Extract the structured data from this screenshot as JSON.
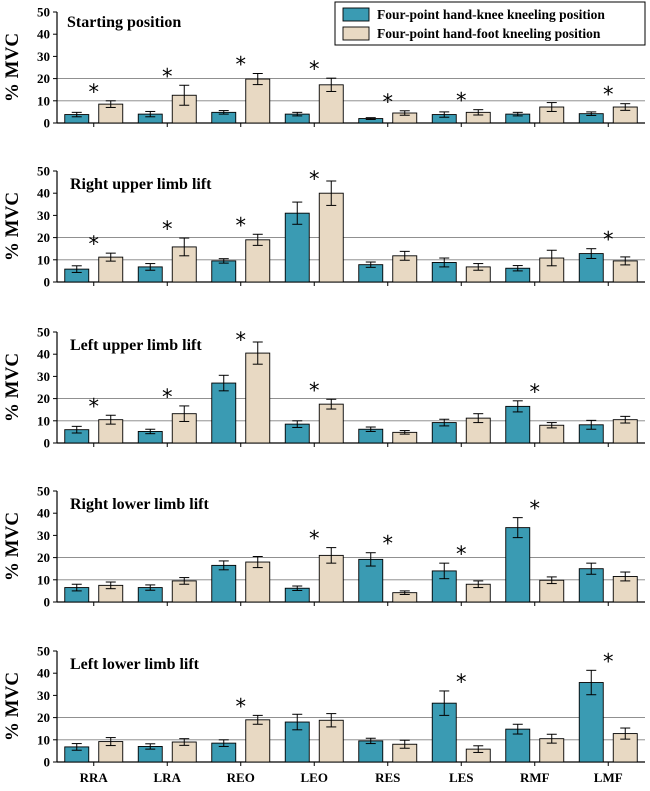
{
  "chart_data": {
    "type": "bar",
    "ylabel": "% MVC",
    "ylim": [
      0,
      50
    ],
    "yticks": [
      0,
      10,
      20,
      30,
      40,
      50
    ],
    "gridlines": [
      10,
      20
    ],
    "categories": [
      "RRA",
      "LRA",
      "REO",
      "LEO",
      "RES",
      "LES",
      "RMF",
      "LMF"
    ],
    "series_names": [
      "Four-point hand-knee kneeling position",
      "Four-point hand-foot kneeling position"
    ],
    "colors": {
      "knee": "#3a9bb3",
      "foot": "#e8d9c3"
    },
    "significance_marker": "*",
    "panels": [
      {
        "title": "Starting position",
        "knee": [
          3.8,
          4.0,
          4.8,
          4.0,
          2.0,
          3.8,
          4.0,
          4.2
        ],
        "knee_err": [
          1.0,
          1.2,
          0.8,
          0.8,
          0.4,
          1.2,
          0.8,
          0.8
        ],
        "foot": [
          8.5,
          12.5,
          19.8,
          17.2,
          4.5,
          4.8,
          7.2,
          7.2
        ],
        "foot_err": [
          1.5,
          4.5,
          2.5,
          3.0,
          1.0,
          1.2,
          2.0,
          1.5
        ],
        "sig": [
          true,
          true,
          true,
          true,
          true,
          true,
          false,
          true
        ]
      },
      {
        "title": "Right upper limb lift",
        "knee": [
          5.8,
          6.8,
          9.5,
          31.0,
          7.8,
          8.8,
          6.2,
          12.8
        ],
        "knee_err": [
          1.5,
          1.5,
          1.0,
          5.0,
          1.2,
          2.0,
          1.2,
          2.2
        ],
        "foot": [
          11.2,
          15.8,
          19.0,
          40.0,
          11.8,
          6.8,
          10.8,
          9.5
        ],
        "foot_err": [
          1.8,
          4.0,
          2.5,
          5.5,
          2.0,
          1.5,
          3.5,
          1.8
        ],
        "sig": [
          true,
          true,
          true,
          true,
          false,
          false,
          false,
          true
        ]
      },
      {
        "title": "Left upper limb lift",
        "knee": [
          6.0,
          5.2,
          27.0,
          8.5,
          6.2,
          9.2,
          16.5,
          8.2
        ],
        "knee_err": [
          1.5,
          1.0,
          3.5,
          1.5,
          1.0,
          1.5,
          2.5,
          2.0
        ],
        "foot": [
          10.5,
          13.2,
          40.5,
          17.5,
          4.8,
          11.2,
          8.0,
          10.5
        ],
        "foot_err": [
          2.0,
          3.5,
          5.0,
          2.2,
          0.8,
          2.0,
          1.2,
          1.5
        ],
        "sig": [
          true,
          true,
          true,
          true,
          false,
          false,
          true,
          false
        ]
      },
      {
        "title": "Right lower limb lift",
        "knee": [
          6.5,
          6.5,
          16.5,
          6.2,
          19.2,
          14.0,
          33.5,
          15.0
        ],
        "knee_err": [
          1.5,
          1.2,
          2.0,
          1.0,
          3.0,
          3.5,
          4.5,
          2.5
        ],
        "foot": [
          7.5,
          9.5,
          18.0,
          21.0,
          4.2,
          8.0,
          9.8,
          11.5
        ],
        "foot_err": [
          1.5,
          1.5,
          2.5,
          3.5,
          0.8,
          1.5,
          1.5,
          2.0
        ],
        "sig": [
          false,
          false,
          false,
          true,
          true,
          true,
          true,
          false
        ]
      },
      {
        "title": "Left lower limb lift",
        "knee": [
          6.8,
          7.0,
          8.5,
          18.0,
          9.5,
          26.5,
          14.8,
          35.8
        ],
        "knee_err": [
          1.5,
          1.2,
          1.5,
          3.5,
          1.2,
          5.5,
          2.2,
          5.5
        ],
        "foot": [
          9.2,
          9.0,
          19.0,
          18.8,
          8.0,
          5.8,
          10.5,
          12.8
        ],
        "foot_err": [
          1.8,
          1.5,
          2.0,
          3.0,
          1.8,
          1.5,
          2.0,
          2.5
        ],
        "sig": [
          false,
          false,
          true,
          false,
          false,
          true,
          false,
          true
        ]
      }
    ]
  }
}
